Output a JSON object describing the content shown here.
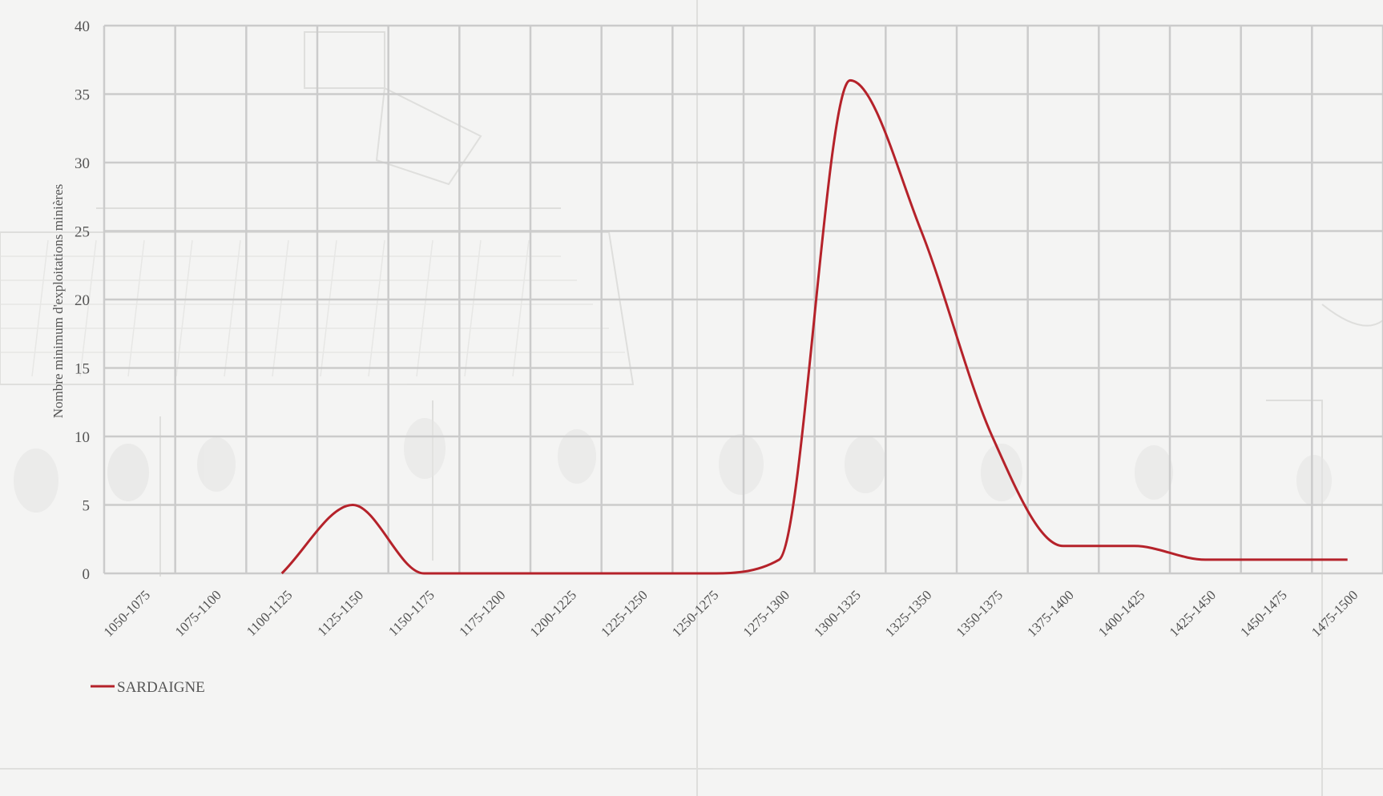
{
  "chart_data": {
    "type": "line",
    "categories": [
      "1050-1075",
      "1075-1100",
      "1100-1125",
      "1125-1150",
      "1150-1175",
      "1175-1200",
      "1200-1225",
      "1225-1250",
      "1250-1275",
      "1275-1300",
      "1300-1325",
      "1325-1350",
      "1350-1375",
      "1375-1400",
      "1400-1425",
      "1425-1450",
      "1450-1475",
      "1475-1500"
    ],
    "series": [
      {
        "name": "SARDAIGNE",
        "color": "#b5222a",
        "values": [
          null,
          null,
          0,
          5,
          0,
          0,
          0,
          0,
          0,
          1,
          36,
          25,
          10,
          2,
          2,
          1,
          1,
          1
        ]
      }
    ],
    "title": "",
    "xlabel": "",
    "ylabel": "Nombre minimum d'exploitations minières",
    "ylim": [
      0,
      40
    ],
    "yticks": [
      0,
      5,
      10,
      15,
      20,
      25,
      30,
      35,
      40
    ],
    "grid": true,
    "legend_position": "bottom-left",
    "colors": {
      "grid": "#cbcbcb",
      "text": "#555555",
      "line": "#b5222a"
    }
  }
}
